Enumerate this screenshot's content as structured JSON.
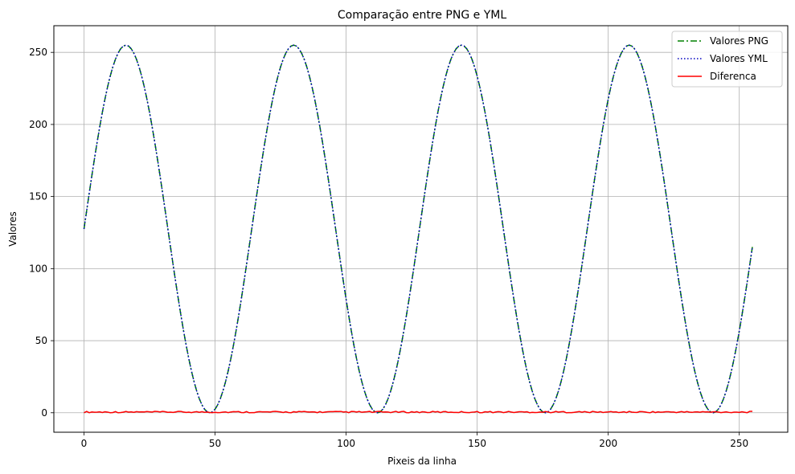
{
  "chart_data": {
    "type": "line",
    "title": "Comparação entre PNG e YML",
    "xlabel": "Pixeis da linha",
    "ylabel": "Valores",
    "xlim": [
      -11.5,
      268.5
    ],
    "ylim": [
      -13.5,
      268.5
    ],
    "xticks": [
      0,
      50,
      100,
      150,
      200,
      250
    ],
    "yticks": [
      0,
      50,
      100,
      150,
      200,
      250
    ],
    "grid": true,
    "legend_position": "top-right",
    "series_formula": {
      "description": "value = 127.5 + 127.5*sin(2*pi*(x - offset)/period), x = 0..255",
      "period": 64,
      "offset": 0,
      "x_start": 0,
      "x_end": 255
    },
    "series": [
      {
        "name": "Valores PNG",
        "color": "#008000",
        "style": "dashdot",
        "peaks_x": [
          16,
          80,
          144,
          208
        ],
        "peak_y": 255,
        "troughs_x": [
          48,
          112,
          176,
          240
        ],
        "trough_y": 0,
        "start": [
          0,
          128
        ],
        "end": [
          255,
          115
        ]
      },
      {
        "name": "Valores YML",
        "color": "#0000bf",
        "style": "dotted",
        "peaks_x": [
          16,
          80,
          144,
          208
        ],
        "peak_y": 255,
        "troughs_x": [
          48,
          112,
          176,
          240
        ],
        "trough_y": 0,
        "start": [
          0,
          128
        ],
        "end": [
          255,
          115
        ]
      },
      {
        "name": "Diferenca",
        "color": "#ff0000",
        "style": "solid",
        "range": [
          0,
          1
        ]
      }
    ]
  }
}
